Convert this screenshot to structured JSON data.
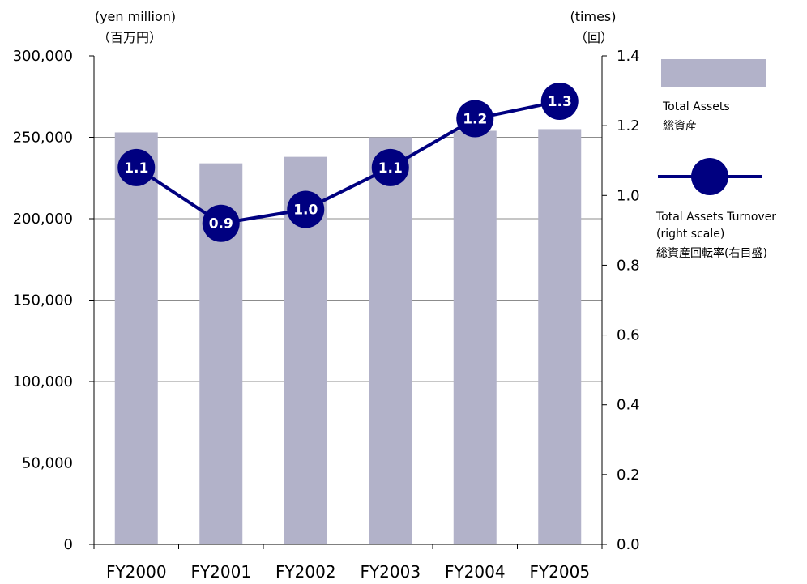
{
  "chart_data": {
    "type": "bar+line",
    "categories": [
      "FY2000",
      "FY2001",
      "FY2002",
      "FY2003",
      "FY2004",
      "FY2005"
    ],
    "series": [
      {
        "name": "Total Assets",
        "name_ja": "総資産",
        "type": "bar",
        "axis": "left",
        "color": "#b2b2c9",
        "values": [
          253000,
          234000,
          238000,
          250000,
          254000,
          255000
        ]
      },
      {
        "name": "Total Assets Turnover (right scale)",
        "name_line1": "Total Assets Turnover",
        "name_line2": "(right scale)",
        "name_ja": "総資産回転率(右目盛)",
        "type": "line",
        "axis": "right",
        "color": "#000080",
        "values": [
          1.08,
          0.92,
          0.96,
          1.08,
          1.22,
          1.27
        ],
        "labels": [
          "1.1",
          "0.9",
          "1.0",
          "1.1",
          "1.2",
          "1.3"
        ]
      }
    ],
    "y_left": {
      "unit": "(yen million)",
      "unit_ja": "（百万円）",
      "range": [
        0,
        300000
      ],
      "ticks": [
        "0",
        "50,000",
        "100,000",
        "150,000",
        "200,000",
        "250,000",
        "300,000"
      ]
    },
    "y_right": {
      "unit": "(times)",
      "unit_ja": "（回）",
      "range": [
        0,
        1.4
      ],
      "ticks": [
        "0.0",
        "0.2",
        "0.4",
        "0.6",
        "0.8",
        "1.0",
        "1.2",
        "1.4"
      ]
    },
    "grid": true,
    "legend": "right"
  }
}
